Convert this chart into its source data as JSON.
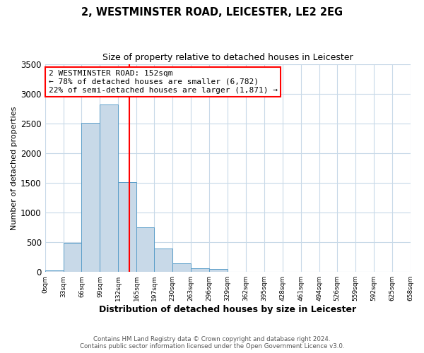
{
  "title": "2, WESTMINSTER ROAD, LEICESTER, LE2 2EG",
  "subtitle": "Size of property relative to detached houses in Leicester",
  "xlabel": "Distribution of detached houses by size in Leicester",
  "ylabel": "Number of detached properties",
  "bin_edges": [
    0,
    33,
    66,
    99,
    132,
    165,
    197,
    230,
    263,
    296,
    329,
    362,
    395,
    428,
    461,
    494,
    526,
    559,
    592,
    625,
    658
  ],
  "bin_counts": [
    30,
    490,
    2510,
    2820,
    1510,
    750,
    390,
    145,
    60,
    50,
    0,
    0,
    0,
    0,
    0,
    0,
    0,
    0,
    0,
    0
  ],
  "bar_color": "#c8d9e8",
  "bar_edgecolor": "#5b9ec9",
  "vline_x": 152,
  "vline_color": "red",
  "annotation_title": "2 WESTMINSTER ROAD: 152sqm",
  "annotation_line1": "← 78% of detached houses are smaller (6,782)",
  "annotation_line2": "22% of semi-detached houses are larger (1,871) →",
  "annotation_box_edgecolor": "red",
  "ylim": [
    0,
    3500
  ],
  "yticks": [
    0,
    500,
    1000,
    1500,
    2000,
    2500,
    3000,
    3500
  ],
  "xtick_labels": [
    "0sqm",
    "33sqm",
    "66sqm",
    "99sqm",
    "132sqm",
    "165sqm",
    "197sqm",
    "230sqm",
    "263sqm",
    "296sqm",
    "329sqm",
    "362sqm",
    "395sqm",
    "428sqm",
    "461sqm",
    "494sqm",
    "526sqm",
    "559sqm",
    "592sqm",
    "625sqm",
    "658sqm"
  ],
  "footer1": "Contains HM Land Registry data © Crown copyright and database right 2024.",
  "footer2": "Contains public sector information licensed under the Open Government Licence v3.0.",
  "background_color": "#ffffff",
  "grid_color": "#c8d9e8"
}
